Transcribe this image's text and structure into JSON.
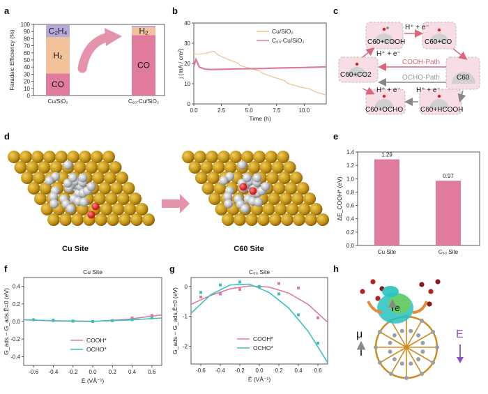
{
  "panels": {
    "a": "a",
    "b": "b",
    "c": "c",
    "d": "d",
    "e": "e",
    "f": "f",
    "g": "g",
    "h": "h"
  },
  "colors": {
    "pink": "#e07b9c",
    "teal": "#3bbfbf",
    "orange": "#f5bd8a",
    "lavender": "#b6a8d8",
    "lightorange": "#f2c29a",
    "gold": "#c9950f"
  },
  "panel_c": {
    "nodes": [
      "C60+COOH",
      "C60+CO",
      "C60+CO2",
      "C60",
      "C60+OCHO",
      "C60+HCOOH"
    ],
    "step_labels": [
      "H⁺ + e⁻",
      "H⁺ + e⁻",
      "H⁺ + e⁻",
      "H⁺ + e⁻"
    ],
    "path_labels": [
      "COOH-Path",
      "OCHO-Path"
    ]
  },
  "panel_d": {
    "labels": [
      "Cu Site",
      "C60 Site"
    ]
  },
  "panel_h": {
    "labels": [
      "e",
      "μ",
      "E"
    ]
  },
  "chart_data": [
    {
      "panel": "a",
      "type": "bar",
      "stacked": true,
      "categories": [
        "Cu/SiO₂",
        "C₆₀-Cu/SiO₂"
      ],
      "series": [
        {
          "name": "CO",
          "values": [
            31,
            85
          ]
        },
        {
          "name": "H₂",
          "values": [
            51,
            11
          ]
        },
        {
          "name": "C₂H₄",
          "values": [
            17,
            2
          ]
        }
      ],
      "ylabel": "Faradaic Efficiency (%)",
      "ylim": [
        0,
        100
      ],
      "yticks": [
        0,
        10,
        20,
        30,
        40,
        50,
        60,
        70,
        80,
        90,
        100
      ]
    },
    {
      "panel": "b",
      "type": "line",
      "xlabel": "Time (h)",
      "ylabel": "j (mA / cm²)",
      "xlim": [
        0,
        12
      ],
      "ylim": [
        0,
        40
      ],
      "xticks": [
        0.0,
        2.5,
        5.0,
        7.5,
        10.0
      ],
      "yticks": [
        0,
        10,
        20,
        30,
        40
      ],
      "legend_position": "top-right",
      "series": [
        {
          "name": "Cu/SiO₂",
          "x": [
            0,
            0.3,
            1.0,
            1.8,
            2.2,
            3.2,
            4.0,
            4.2,
            5.2,
            6.0,
            6.3,
            7.2,
            8.2,
            8.5,
            9.5,
            10.5,
            11.0,
            12.0
          ],
          "y": [
            25,
            24.6,
            24.9,
            26.1,
            24.2,
            21.8,
            20.2,
            19.0,
            17.4,
            16.2,
            15.0,
            13.2,
            11.6,
            10.2,
            8.6,
            7.3,
            6.0,
            4.3
          ]
        },
        {
          "name": "C₆₀-Cu/SiO₂",
          "x": [
            0,
            0.2,
            0.5,
            1.0,
            1.5,
            2.5,
            4.0,
            6.0,
            8.0,
            10.0,
            12.0
          ],
          "y": [
            18.5,
            22,
            18.2,
            17.2,
            17.0,
            17.1,
            17.3,
            17.5,
            17.8,
            18.0,
            18.3
          ]
        }
      ]
    },
    {
      "panel": "e",
      "type": "bar",
      "categories": [
        "Cu Site",
        "C₆₀ Site"
      ],
      "values": [
        1.29,
        0.97
      ],
      "data_labels": [
        "1.29",
        "0.97"
      ],
      "ylabel": "ΔE_COOH* (eV)",
      "ylim": [
        0,
        1.4
      ],
      "yticks": [
        0.0,
        0.2,
        0.4,
        0.6,
        0.8,
        1.0,
        1.2,
        1.4
      ]
    },
    {
      "panel": "f",
      "type": "scatter",
      "title": "Cu Site",
      "xlabel": "Ē (VÅ⁻¹)",
      "ylabel": "G_ads − G_ads,Ē=0 (eV)",
      "xlim": [
        -0.7,
        0.7
      ],
      "ylim": [
        -0.5,
        0.5
      ],
      "xticks": [
        -0.6,
        -0.4,
        -0.2,
        0.0,
        0.2,
        0.4,
        0.6
      ],
      "yticks": [
        -0.4,
        -0.2,
        0.0,
        0.2,
        0.4
      ],
      "legend_position": "lower-center",
      "series": [
        {
          "name": "COOH*",
          "x": [
            -0.6,
            -0.4,
            -0.2,
            0.0,
            0.2,
            0.4,
            0.6
          ],
          "y": [
            0.02,
            0.01,
            0.005,
            0.0,
            0.01,
            0.04,
            0.07
          ],
          "fit_x": [
            -0.7,
            -0.35,
            0.0,
            0.35,
            0.7
          ],
          "fit_y": [
            0.02,
            0.005,
            0.0,
            0.025,
            0.075
          ]
        },
        {
          "name": "OCHO*",
          "x": [
            -0.6,
            -0.4,
            -0.2,
            0.0,
            0.2,
            0.4,
            0.6
          ],
          "y": [
            0.02,
            0.015,
            0.005,
            0.0,
            0.01,
            0.02,
            0.04
          ],
          "fit_x": [
            -0.7,
            -0.35,
            0.0,
            0.35,
            0.7
          ],
          "fit_y": [
            0.02,
            0.008,
            0.002,
            0.015,
            0.04
          ]
        }
      ]
    },
    {
      "panel": "g",
      "type": "scatter",
      "title": "C₆₀ Site",
      "xlabel": "Ē (VÅ⁻¹)",
      "ylabel": "G_ads − G_ads,Ē=0 (eV)",
      "xlim": [
        -0.7,
        0.7
      ],
      "ylim": [
        -2.6,
        0.3
      ],
      "xticks": [
        -0.6,
        -0.4,
        -0.2,
        0.0,
        0.2,
        0.4,
        0.6
      ],
      "yticks": [
        -2,
        -1,
        0
      ],
      "legend_position": "lower-center",
      "series": [
        {
          "name": "COOH*",
          "x": [
            -0.6,
            -0.4,
            -0.2,
            0.0,
            0.2,
            0.4,
            0.6
          ],
          "y": [
            -0.35,
            -0.25,
            -0.1,
            0.0,
            0.1,
            -0.05,
            -1.05
          ],
          "fit_x": [
            -0.7,
            -0.5,
            -0.3,
            -0.1,
            0.1,
            0.3,
            0.5,
            0.7
          ],
          "fit_y": [
            -0.6,
            -0.3,
            -0.08,
            0.02,
            -0.02,
            -0.22,
            -0.6,
            -1.2
          ]
        },
        {
          "name": "OCHO*",
          "x": [
            -0.6,
            -0.4,
            -0.2,
            0.0,
            0.2,
            0.4,
            0.6
          ],
          "y": [
            -0.2,
            0.05,
            0.15,
            0.0,
            -0.25,
            -0.95,
            -1.9
          ],
          "fit_x": [
            -0.7,
            -0.5,
            -0.3,
            -0.1,
            0.1,
            0.3,
            0.5,
            0.7
          ],
          "fit_y": [
            -0.9,
            -0.28,
            0.05,
            0.08,
            -0.2,
            -0.72,
            -1.5,
            -2.55
          ]
        }
      ]
    }
  ]
}
